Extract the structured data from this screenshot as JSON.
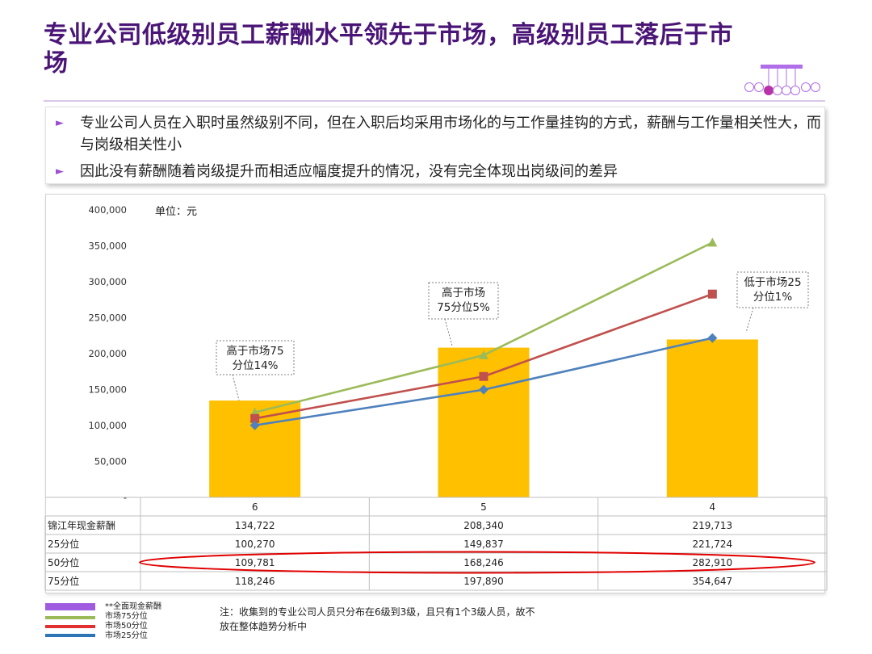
{
  "title": "专业公司低级别员工薪酬水平领先于市场，高级别员工落后于市场",
  "bullets": [
    "专业公司人员在入职时虽然级别不同，但在入职后均采用市场化的与工作量挂钩的方式，薪酬与工作量相关性大，而与岗级相关性小",
    "因此没有薪酬随着岗级提升而相适应幅度提升的情况，没有完全体现出岗级间的差异"
  ],
  "bullet_marker": "►",
  "chart_data": {
    "type": "bar",
    "unit_label": "单位：元",
    "categories": [
      "6",
      "5",
      "4"
    ],
    "ylim": [
      0,
      400000
    ],
    "yticks": [
      0,
      50000,
      100000,
      150000,
      200000,
      250000,
      300000,
      350000,
      400000
    ],
    "ytick_labels": [
      "-",
      "50,000",
      "100,000",
      "150,000",
      "200,000",
      "250,000",
      "300,000",
      "350,000",
      "400,000"
    ],
    "bar_series": {
      "name": "锦江年现金薪酬",
      "values": [
        134722,
        208340,
        219713
      ],
      "color": "#ffc000"
    },
    "series": [
      {
        "name": "75分位",
        "values": [
          118246,
          197890,
          354647
        ],
        "color": "#9bbb59",
        "marker": "triangle"
      },
      {
        "name": "50分位",
        "values": [
          109781,
          168246,
          282910
        ],
        "color": "#c0504d",
        "marker": "square"
      },
      {
        "name": "25分位",
        "values": [
          100270,
          149837,
          221724
        ],
        "color": "#4f81bd",
        "marker": "diamond"
      }
    ],
    "annotations": [
      {
        "lines": [
          "高于市场75",
          "分位14%"
        ],
        "category": 0,
        "value": 134722
      },
      {
        "lines": [
          "高于市场",
          "75分位5%"
        ],
        "category": 1,
        "value": 208340
      },
      {
        "lines": [
          "低于市场25",
          "分位1%"
        ],
        "category": 2,
        "value": 219713
      }
    ],
    "table": {
      "rows": [
        {
          "label": "锦江年现金薪酬",
          "cells": [
            "134,722",
            "208,340",
            "219,713"
          ]
        },
        {
          "label": "25分位",
          "cells": [
            "100,270",
            "149,837",
            "221,724"
          ]
        },
        {
          "label": "50分位",
          "cells": [
            "109,781",
            "168,246",
            "282,910"
          ]
        },
        {
          "label": "75分位",
          "cells": [
            "118,246",
            "197,890",
            "354,647"
          ]
        }
      ],
      "highlight_row": "50分位",
      "highlight_color": "#e00000"
    }
  },
  "legend": [
    {
      "label": "**全面现金薪酬",
      "color": "#a05ce0"
    },
    {
      "label": "市场75分位",
      "color": "#9bbb59"
    },
    {
      "label": "市场50分位",
      "color": "#e03030"
    },
    {
      "label": "市场25分位",
      "color": "#2e75b6"
    }
  ],
  "note": "注：收集到的专业公司人员只分布在6级到3级，且只有1个3级人员，故不放在整体趋势分析中"
}
